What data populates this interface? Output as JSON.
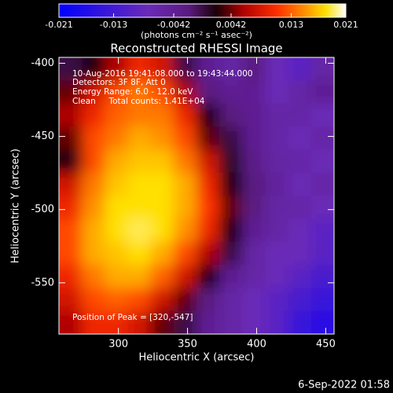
{
  "chart_data": {
    "type": "heatmap",
    "title": "Reconstructed RHESSI Image",
    "xlabel": "Heliocentric X (arcsec)",
    "ylabel": "Heliocentric Y (arcsec)",
    "xlim": [
      257,
      456
    ],
    "ylim": [
      -585,
      -396
    ],
    "xticks": [
      300,
      350,
      400,
      450
    ],
    "yticks": [
      -550,
      -500,
      -450,
      -400
    ],
    "colorbar": {
      "label": "(photons cm⁻² s⁻¹ asec⁻²)",
      "lim": [
        -0.021,
        0.021
      ],
      "ticks": [
        -0.021,
        -0.013,
        -0.0042,
        0.0042,
        0.013,
        0.021
      ]
    },
    "colormap": [
      [
        -0.021,
        "#0000ff"
      ],
      [
        -0.008,
        "#6a2ab8"
      ],
      [
        -0.002,
        "#5a1a80"
      ],
      [
        0.002,
        "#1a0008"
      ],
      [
        0.006,
        "#b00000"
      ],
      [
        0.011,
        "#ff3000"
      ],
      [
        0.015,
        "#ff9000"
      ],
      [
        0.018,
        "#ffe000"
      ],
      [
        0.021,
        "#ffffff"
      ]
    ],
    "z": [
      [
        0.0,
        0.002,
        0.006,
        0.01,
        0.008,
        0.0,
        -0.004,
        -0.006,
        -0.002,
        -0.008,
        -0.01,
        -0.006
      ],
      [
        0.004,
        0.008,
        0.012,
        0.014,
        0.012,
        0.006,
        -0.002,
        -0.004,
        -0.004,
        -0.008,
        -0.006,
        -0.004
      ],
      [
        0.006,
        0.01,
        0.013,
        0.014,
        0.014,
        0.01,
        0.002,
        -0.002,
        -0.004,
        -0.006,
        -0.006,
        -0.008
      ],
      [
        0.004,
        0.012,
        0.014,
        0.016,
        0.015,
        0.012,
        0.004,
        0.0,
        -0.004,
        -0.006,
        -0.008,
        -0.006
      ],
      [
        0.002,
        0.012,
        0.016,
        0.017,
        0.017,
        0.014,
        0.008,
        0.001,
        -0.003,
        -0.006,
        -0.006,
        -0.008
      ],
      [
        0.008,
        0.014,
        0.017,
        0.018,
        0.018,
        0.016,
        0.01,
        0.002,
        -0.002,
        -0.005,
        -0.008,
        -0.006
      ],
      [
        0.01,
        0.015,
        0.018,
        0.018,
        0.018,
        0.016,
        0.011,
        0.004,
        -0.002,
        -0.006,
        -0.006,
        -0.008
      ],
      [
        0.012,
        0.016,
        0.018,
        0.019,
        0.018,
        0.015,
        0.01,
        0.002,
        -0.004,
        -0.006,
        -0.008,
        -0.01
      ],
      [
        0.012,
        0.016,
        0.017,
        0.018,
        0.016,
        0.012,
        0.006,
        0.0,
        -0.006,
        -0.008,
        -0.008,
        -0.01
      ],
      [
        0.01,
        0.014,
        0.016,
        0.016,
        0.013,
        0.008,
        0.002,
        -0.004,
        -0.006,
        -0.008,
        -0.01,
        -0.012
      ],
      [
        0.008,
        0.012,
        0.013,
        0.012,
        0.008,
        0.004,
        -0.002,
        -0.006,
        -0.008,
        -0.01,
        -0.012,
        -0.014
      ],
      [
        0.006,
        0.01,
        0.01,
        0.008,
        0.004,
        0.0,
        -0.004,
        -0.006,
        -0.008,
        -0.01,
        -0.014,
        -0.016
      ]
    ],
    "annotations": [
      "10-Aug-2016 19:41:08.000 to 19:43:44.000",
      "Detectors: 3F 8F, Att 0",
      "Energy Range: 6.0 - 12.0 keV",
      "Clean     Total counts: 1.41E+04",
      "Position of Peak = [320,-547]"
    ],
    "footer": "6-Sep-2022 01:58"
  }
}
